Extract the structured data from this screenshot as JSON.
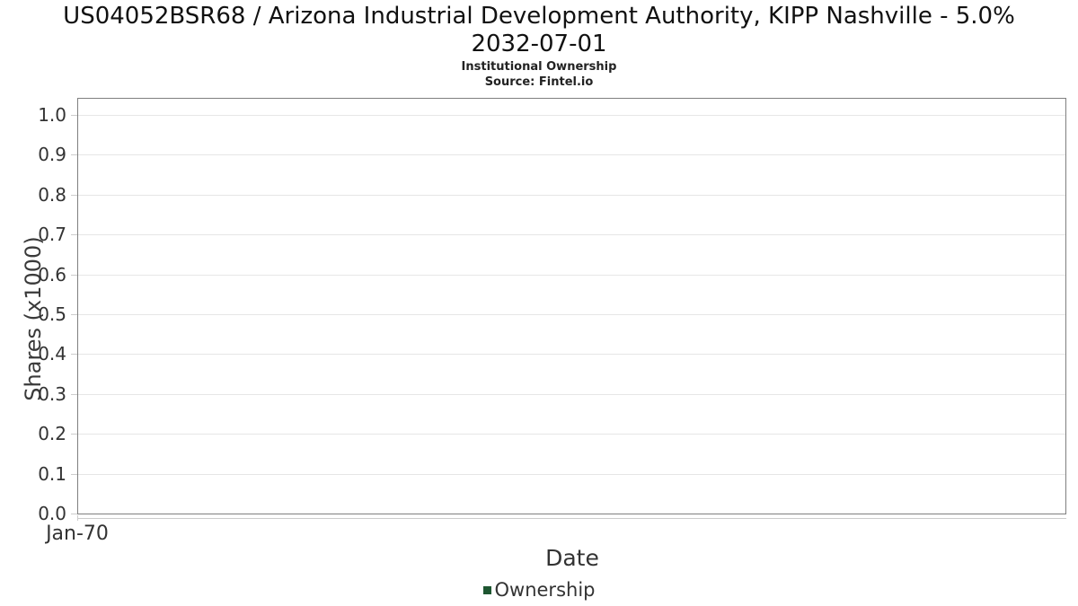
{
  "colors": {
    "title": "#111111",
    "subtitle": "#222222",
    "axis_text": "#333333",
    "gridline": "#e6e6e6",
    "plot_border": "#7f7f7f",
    "tick": "#cccccc",
    "legend_marker": "#1e5631"
  },
  "chart_data": {
    "type": "line",
    "title": "US04052BSR68 / Arizona Industrial Development Authority, KIPP Nashville - 5.0% 2032-07-01",
    "title_line1": "US04052BSR68 / Arizona Industrial Development Authority, KIPP Nashville - 5.0%",
    "title_line2": "2032-07-01",
    "subtitle": "Institutional Ownership",
    "source": "Source: Fintel.io",
    "xlabel": "Date",
    "ylabel": "Shares (x1000)",
    "x_tick_labels": [
      "Jan-70"
    ],
    "y_tick_labels": [
      "0.0",
      "0.1",
      "0.2",
      "0.3",
      "0.4",
      "0.5",
      "0.6",
      "0.7",
      "0.8",
      "0.9",
      "1.0"
    ],
    "ylim": [
      0.0,
      1.043
    ],
    "grid": true,
    "legend": {
      "position": "bottom-center",
      "entries": [
        {
          "label": "Ownership",
          "color": "#1e5631"
        }
      ]
    },
    "series": [
      {
        "name": "Ownership",
        "x": [],
        "values": []
      }
    ]
  }
}
